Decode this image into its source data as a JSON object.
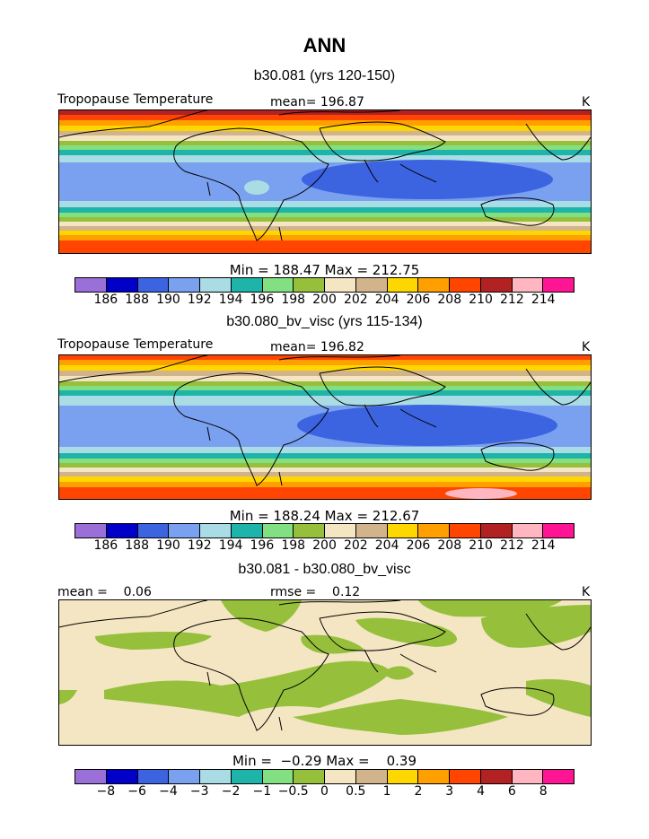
{
  "title": "ANN",
  "colors": [
    "#9a6fd8",
    "#0000c8",
    "#3c64e0",
    "#7aa0f0",
    "#aadce6",
    "#1eb4aa",
    "#82e082",
    "#96c03c",
    "#f5e6c3",
    "#d2b48c",
    "#ffd700",
    "#ffa000",
    "#ff4500",
    "#b22222",
    "#ffb6c1",
    "#ff1493"
  ],
  "panels": [
    {
      "title": "b30.081 (yrs 120-150)",
      "left_label": "Tropopause Temperature",
      "center_label": "mean= 196.87",
      "right_label": "K",
      "minmax": "Min = 188.47 Max = 212.75",
      "min": 188.47,
      "max": 212.75,
      "ticks": [
        "186",
        "188",
        "190",
        "192",
        "194",
        "196",
        "198",
        "200",
        "202",
        "204",
        "206",
        "208",
        "210",
        "212",
        "214"
      ]
    },
    {
      "title": "b30.080_bv_visc (yrs 115-134)",
      "left_label": "Tropopause Temperature",
      "center_label": "mean= 196.82",
      "right_label": "K",
      "minmax": "Min = 188.24 Max = 212.67",
      "min": 188.24,
      "max": 212.67,
      "ticks": [
        "186",
        "188",
        "190",
        "192",
        "194",
        "196",
        "198",
        "200",
        "202",
        "204",
        "206",
        "208",
        "210",
        "212",
        "214"
      ]
    },
    {
      "title": "b30.081 - b30.080_bv_visc",
      "left_label": "mean =    0.06",
      "center_label": "rmse =    0.12",
      "right_label": "K",
      "minmax": "Min =  −0.29 Max =    0.39",
      "min": -0.29,
      "max": 0.39,
      "ticks": [
        "−8",
        "−6",
        "−4",
        "−3",
        "−2",
        "−1",
        "−0.5",
        "0",
        "0.5",
        "1",
        "2",
        "3",
        "4",
        "6",
        "8"
      ]
    }
  ]
}
